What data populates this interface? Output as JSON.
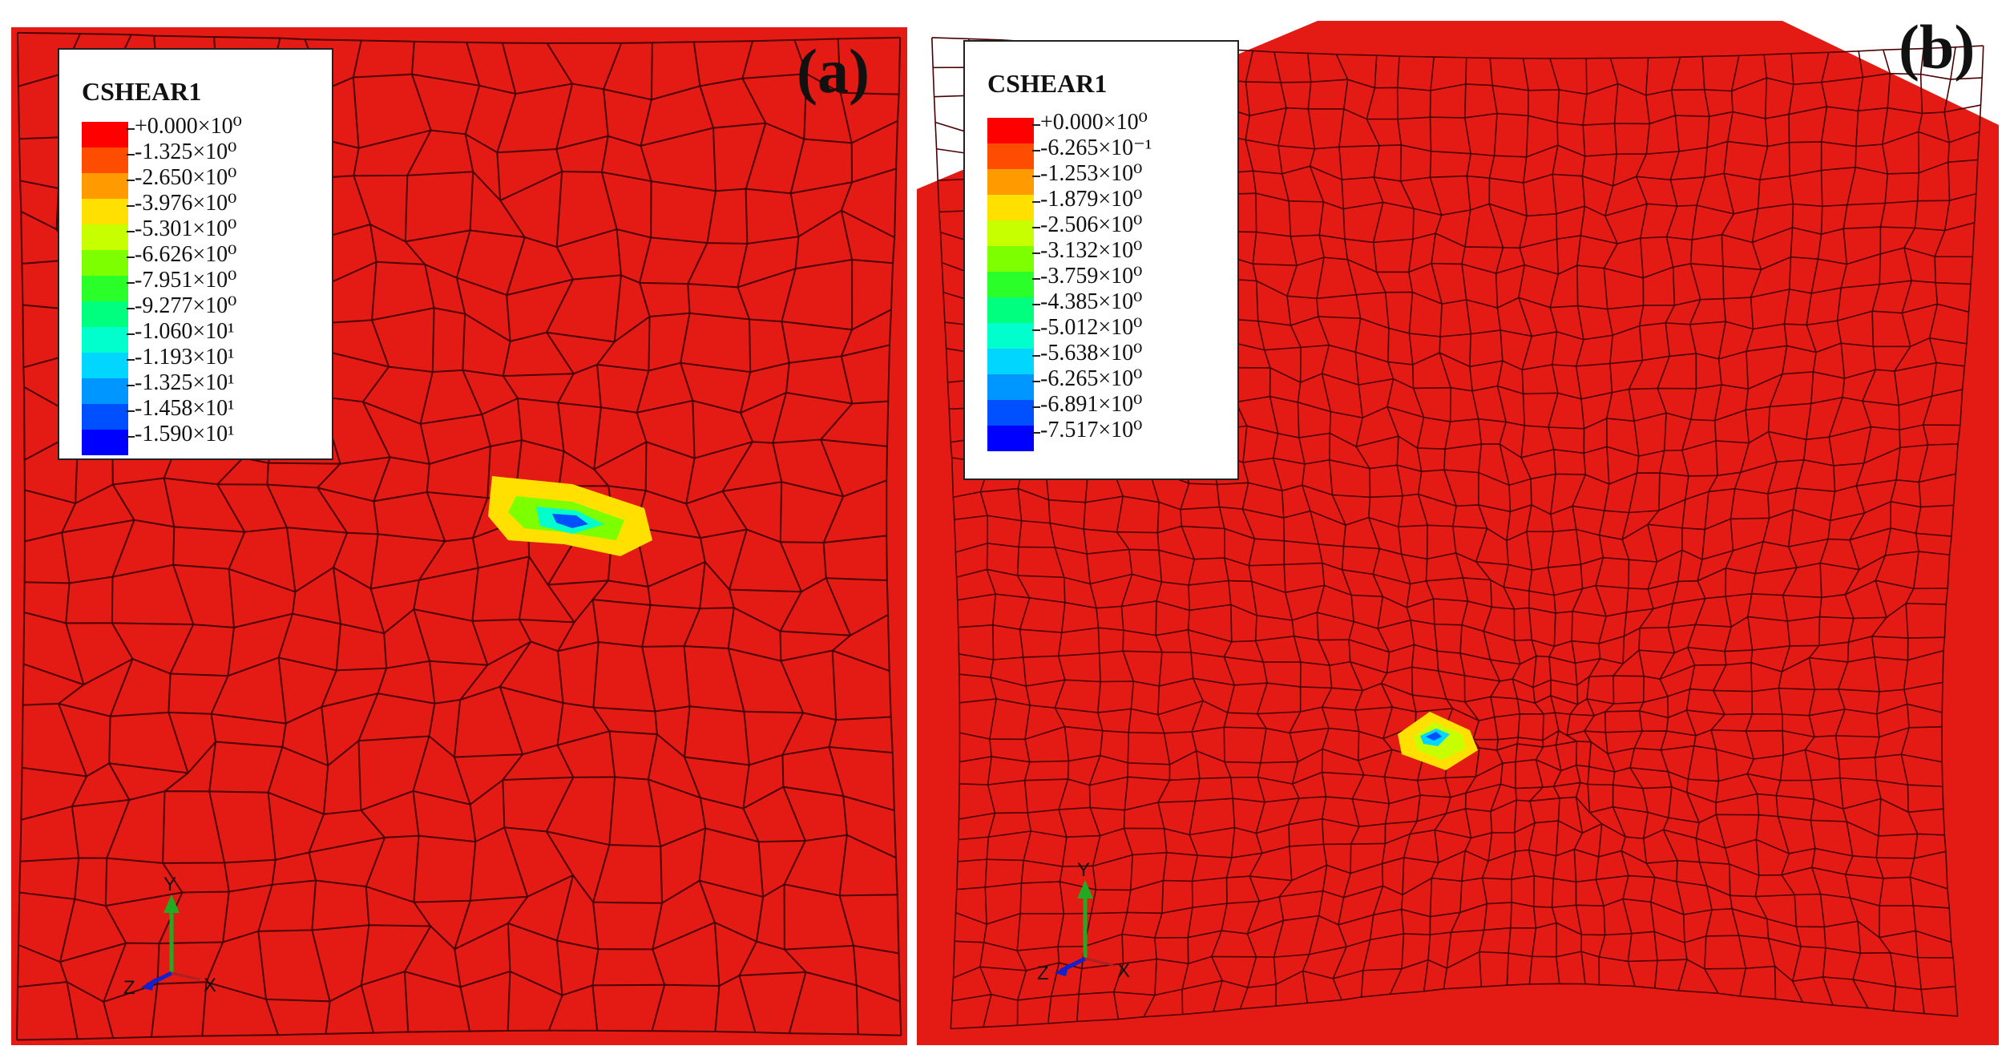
{
  "panels": [
    {
      "id": "a",
      "label": "(a)",
      "legend_title": "CSHEAR1",
      "legend_values": [
        "+0.000×10⁰",
        "-1.325×10⁰",
        "-2.650×10⁰",
        "-3.976×10⁰",
        "-5.301×10⁰",
        "-6.626×10⁰",
        "-7.951×10⁰",
        "-9.277×10⁰",
        "-1.060×10¹",
        "-1.193×10¹",
        "-1.325×10¹",
        "-1.458×10¹",
        "-1.590×10¹"
      ],
      "axes": {
        "y": "Y",
        "z": "Z",
        "x": "X"
      }
    },
    {
      "id": "b",
      "label": "(b)",
      "legend_title": "CSHEAR1",
      "legend_values": [
        "+0.000×10⁰",
        "-6.265×10⁻¹",
        "-1.253×10⁰",
        "-1.879×10⁰",
        "-2.506×10⁰",
        "-3.132×10⁰",
        "-3.759×10⁰",
        "-4.385×10⁰",
        "-5.012×10⁰",
        "-5.638×10⁰",
        "-6.265×10⁰",
        "-6.891×10⁰",
        "-7.517×10⁰"
      ],
      "axes": {
        "y": "Y",
        "z": "Z",
        "x": "X"
      }
    }
  ],
  "legend_colors": [
    "#ff0000",
    "#ff4d00",
    "#ff9a00",
    "#ffe000",
    "#c8ff00",
    "#7dff00",
    "#2aff2a",
    "#00ff7f",
    "#00ffcc",
    "#00d6ff",
    "#0096ff",
    "#0050ff",
    "#0000ff"
  ],
  "colors": {
    "mesh_fill": "#e41a14",
    "mesh_line": "#4a0000"
  }
}
